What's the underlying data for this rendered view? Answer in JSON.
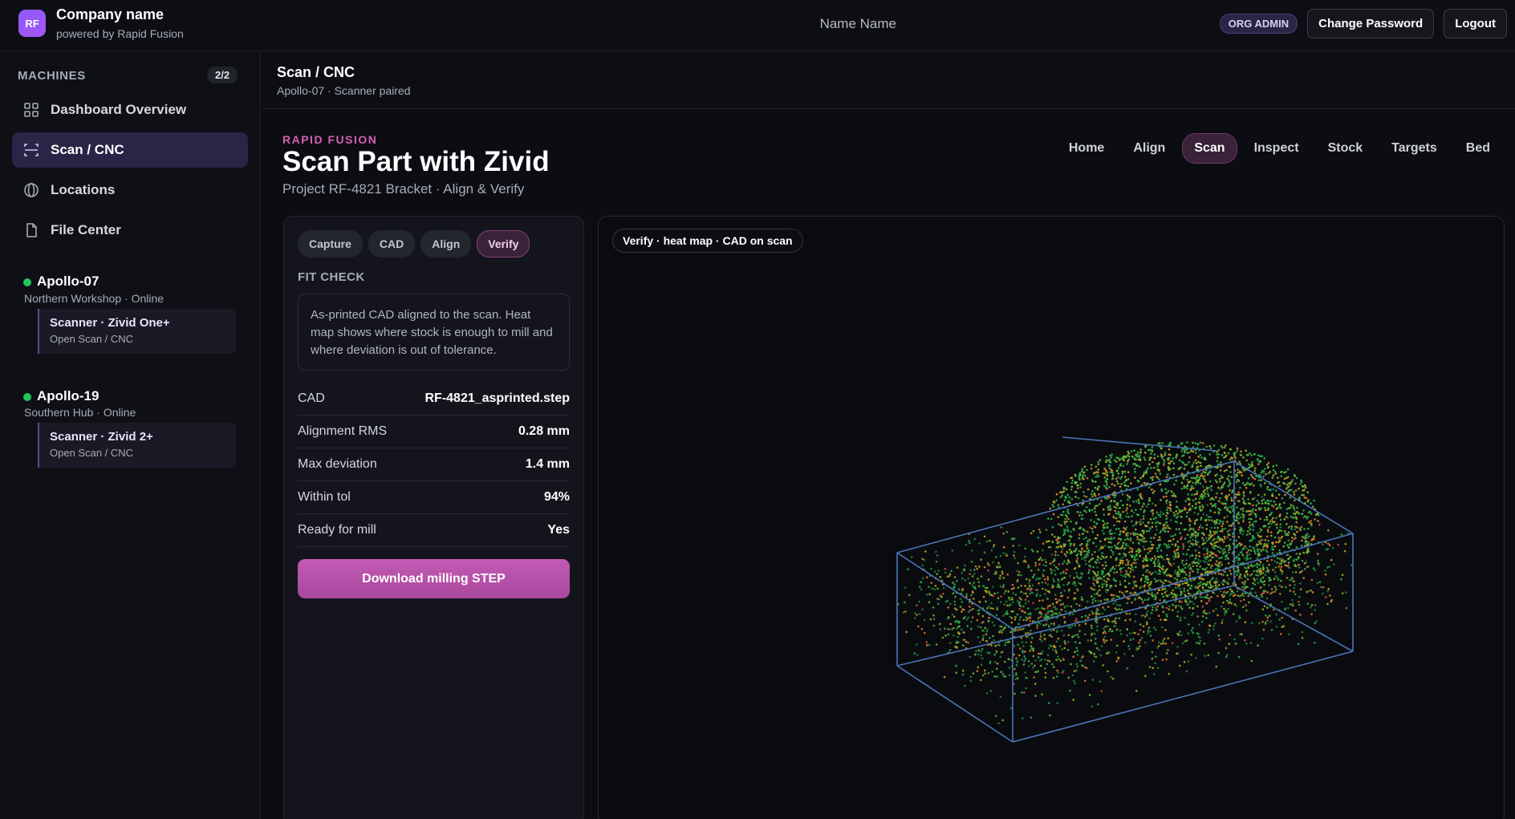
{
  "header": {
    "logo_text": "RF",
    "company": "Company name",
    "powered_by": "powered by Rapid Fusion",
    "user_name": "Name Name",
    "role": "ORG ADMIN",
    "change_password": "Change Password",
    "logout": "Logout"
  },
  "sidebar": {
    "machines_label": "MACHINES",
    "machines_count": "2/2",
    "nav": [
      {
        "label": "Dashboard Overview",
        "icon": "grid-icon"
      },
      {
        "label": "Scan / CNC",
        "icon": "scan-icon",
        "active": true
      },
      {
        "label": "Locations",
        "icon": "globe-icon"
      },
      {
        "label": "File Center",
        "icon": "file-icon"
      }
    ],
    "machines": [
      {
        "name": "Apollo-07",
        "sub": "Northern Workshop · Online",
        "status_color": "#22c55e",
        "scanner": {
          "title": "Scanner · Zivid One+",
          "sub": "Open Scan / CNC"
        }
      },
      {
        "name": "Apollo-19",
        "sub": "Southern Hub · Online",
        "status_color": "#22c55e",
        "scanner": {
          "title": "Scanner · Zivid 2+",
          "sub": "Open Scan / CNC"
        }
      }
    ]
  },
  "page": {
    "title": "Scan / CNC",
    "subtitle": "Apollo-07 · Scanner paired"
  },
  "main": {
    "eyebrow": "RAPID FUSION",
    "title": "Scan Part with Zivid",
    "subtitle": "Project RF-4821 Bracket · Align & Verify",
    "tabs": [
      "Home",
      "Align",
      "Scan",
      "Inspect",
      "Stock",
      "Targets",
      "Bed"
    ],
    "active_tab": "Scan"
  },
  "panel": {
    "steps": [
      "Capture",
      "CAD",
      "Align",
      "Verify"
    ],
    "active_step": "Verify",
    "fit_check_label": "FIT CHECK",
    "fit_check_note": "As-printed CAD aligned to the scan. Heat map shows where stock is enough to mill and where deviation is out of tolerance.",
    "metrics": [
      {
        "key": "CAD",
        "value": "RF-4821_asprinted.step"
      },
      {
        "key": "Alignment RMS",
        "value": "0.28 mm"
      },
      {
        "key": "Max deviation",
        "value": "1.4 mm"
      },
      {
        "key": "Within tol",
        "value": "94%"
      },
      {
        "key": "Ready for mill",
        "value": "Yes"
      }
    ],
    "download_label": "Download milling STEP"
  },
  "viewer": {
    "label": "Verify · heat map · CAD on scan",
    "heat_colors": [
      "#1f8a3a",
      "#2fb34a",
      "#7fbf2a",
      "#d4a21c",
      "#e0802a",
      "#d94a4a"
    ],
    "box_color": "#4b74b8"
  }
}
